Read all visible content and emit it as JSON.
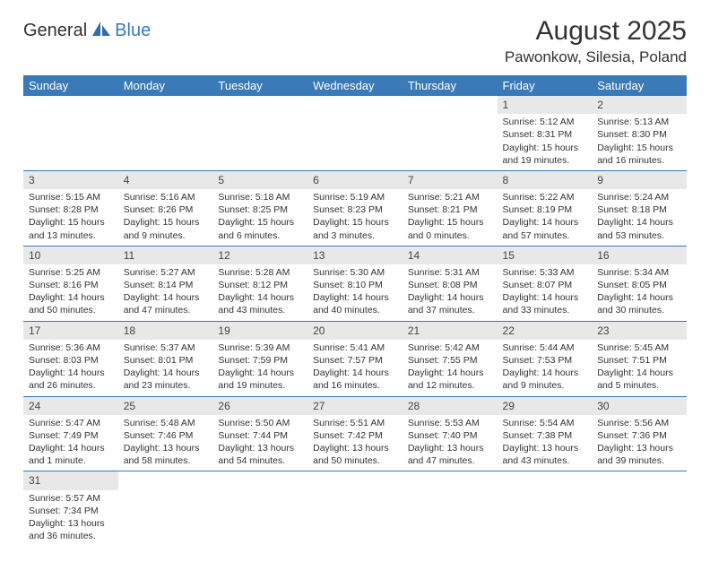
{
  "logo": {
    "part1": "General",
    "part2": "Blue"
  },
  "title": "August 2025",
  "subtitle": "Pawonkow, Silesia, Poland",
  "colors": {
    "headerBg": "#3a7ab8",
    "headerText": "#ffffff",
    "dayNumBg": "#e8e8e8",
    "rowBorder": "#3a7ab8",
    "textColor": "#333333",
    "pageBg": "#ffffff"
  },
  "fonts": {
    "title_size": 30,
    "subtitle_size": 17,
    "weekday_size": 13,
    "daynum_size": 12,
    "body_size": 10.5
  },
  "weekdays": [
    "Sunday",
    "Monday",
    "Tuesday",
    "Wednesday",
    "Thursday",
    "Friday",
    "Saturday"
  ],
  "weeks": [
    [
      null,
      null,
      null,
      null,
      null,
      {
        "n": "1",
        "sr": "Sunrise: 5:12 AM",
        "ss": "Sunset: 8:31 PM",
        "dl1": "Daylight: 15 hours",
        "dl2": "and 19 minutes."
      },
      {
        "n": "2",
        "sr": "Sunrise: 5:13 AM",
        "ss": "Sunset: 8:30 PM",
        "dl1": "Daylight: 15 hours",
        "dl2": "and 16 minutes."
      }
    ],
    [
      {
        "n": "3",
        "sr": "Sunrise: 5:15 AM",
        "ss": "Sunset: 8:28 PM",
        "dl1": "Daylight: 15 hours",
        "dl2": "and 13 minutes."
      },
      {
        "n": "4",
        "sr": "Sunrise: 5:16 AM",
        "ss": "Sunset: 8:26 PM",
        "dl1": "Daylight: 15 hours",
        "dl2": "and 9 minutes."
      },
      {
        "n": "5",
        "sr": "Sunrise: 5:18 AM",
        "ss": "Sunset: 8:25 PM",
        "dl1": "Daylight: 15 hours",
        "dl2": "and 6 minutes."
      },
      {
        "n": "6",
        "sr": "Sunrise: 5:19 AM",
        "ss": "Sunset: 8:23 PM",
        "dl1": "Daylight: 15 hours",
        "dl2": "and 3 minutes."
      },
      {
        "n": "7",
        "sr": "Sunrise: 5:21 AM",
        "ss": "Sunset: 8:21 PM",
        "dl1": "Daylight: 15 hours",
        "dl2": "and 0 minutes."
      },
      {
        "n": "8",
        "sr": "Sunrise: 5:22 AM",
        "ss": "Sunset: 8:19 PM",
        "dl1": "Daylight: 14 hours",
        "dl2": "and 57 minutes."
      },
      {
        "n": "9",
        "sr": "Sunrise: 5:24 AM",
        "ss": "Sunset: 8:18 PM",
        "dl1": "Daylight: 14 hours",
        "dl2": "and 53 minutes."
      }
    ],
    [
      {
        "n": "10",
        "sr": "Sunrise: 5:25 AM",
        "ss": "Sunset: 8:16 PM",
        "dl1": "Daylight: 14 hours",
        "dl2": "and 50 minutes."
      },
      {
        "n": "11",
        "sr": "Sunrise: 5:27 AM",
        "ss": "Sunset: 8:14 PM",
        "dl1": "Daylight: 14 hours",
        "dl2": "and 47 minutes."
      },
      {
        "n": "12",
        "sr": "Sunrise: 5:28 AM",
        "ss": "Sunset: 8:12 PM",
        "dl1": "Daylight: 14 hours",
        "dl2": "and 43 minutes."
      },
      {
        "n": "13",
        "sr": "Sunrise: 5:30 AM",
        "ss": "Sunset: 8:10 PM",
        "dl1": "Daylight: 14 hours",
        "dl2": "and 40 minutes."
      },
      {
        "n": "14",
        "sr": "Sunrise: 5:31 AM",
        "ss": "Sunset: 8:08 PM",
        "dl1": "Daylight: 14 hours",
        "dl2": "and 37 minutes."
      },
      {
        "n": "15",
        "sr": "Sunrise: 5:33 AM",
        "ss": "Sunset: 8:07 PM",
        "dl1": "Daylight: 14 hours",
        "dl2": "and 33 minutes."
      },
      {
        "n": "16",
        "sr": "Sunrise: 5:34 AM",
        "ss": "Sunset: 8:05 PM",
        "dl1": "Daylight: 14 hours",
        "dl2": "and 30 minutes."
      }
    ],
    [
      {
        "n": "17",
        "sr": "Sunrise: 5:36 AM",
        "ss": "Sunset: 8:03 PM",
        "dl1": "Daylight: 14 hours",
        "dl2": "and 26 minutes."
      },
      {
        "n": "18",
        "sr": "Sunrise: 5:37 AM",
        "ss": "Sunset: 8:01 PM",
        "dl1": "Daylight: 14 hours",
        "dl2": "and 23 minutes."
      },
      {
        "n": "19",
        "sr": "Sunrise: 5:39 AM",
        "ss": "Sunset: 7:59 PM",
        "dl1": "Daylight: 14 hours",
        "dl2": "and 19 minutes."
      },
      {
        "n": "20",
        "sr": "Sunrise: 5:41 AM",
        "ss": "Sunset: 7:57 PM",
        "dl1": "Daylight: 14 hours",
        "dl2": "and 16 minutes."
      },
      {
        "n": "21",
        "sr": "Sunrise: 5:42 AM",
        "ss": "Sunset: 7:55 PM",
        "dl1": "Daylight: 14 hours",
        "dl2": "and 12 minutes."
      },
      {
        "n": "22",
        "sr": "Sunrise: 5:44 AM",
        "ss": "Sunset: 7:53 PM",
        "dl1": "Daylight: 14 hours",
        "dl2": "and 9 minutes."
      },
      {
        "n": "23",
        "sr": "Sunrise: 5:45 AM",
        "ss": "Sunset: 7:51 PM",
        "dl1": "Daylight: 14 hours",
        "dl2": "and 5 minutes."
      }
    ],
    [
      {
        "n": "24",
        "sr": "Sunrise: 5:47 AM",
        "ss": "Sunset: 7:49 PM",
        "dl1": "Daylight: 14 hours",
        "dl2": "and 1 minute."
      },
      {
        "n": "25",
        "sr": "Sunrise: 5:48 AM",
        "ss": "Sunset: 7:46 PM",
        "dl1": "Daylight: 13 hours",
        "dl2": "and 58 minutes."
      },
      {
        "n": "26",
        "sr": "Sunrise: 5:50 AM",
        "ss": "Sunset: 7:44 PM",
        "dl1": "Daylight: 13 hours",
        "dl2": "and 54 minutes."
      },
      {
        "n": "27",
        "sr": "Sunrise: 5:51 AM",
        "ss": "Sunset: 7:42 PM",
        "dl1": "Daylight: 13 hours",
        "dl2": "and 50 minutes."
      },
      {
        "n": "28",
        "sr": "Sunrise: 5:53 AM",
        "ss": "Sunset: 7:40 PM",
        "dl1": "Daylight: 13 hours",
        "dl2": "and 47 minutes."
      },
      {
        "n": "29",
        "sr": "Sunrise: 5:54 AM",
        "ss": "Sunset: 7:38 PM",
        "dl1": "Daylight: 13 hours",
        "dl2": "and 43 minutes."
      },
      {
        "n": "30",
        "sr": "Sunrise: 5:56 AM",
        "ss": "Sunset: 7:36 PM",
        "dl1": "Daylight: 13 hours",
        "dl2": "and 39 minutes."
      }
    ],
    [
      {
        "n": "31",
        "sr": "Sunrise: 5:57 AM",
        "ss": "Sunset: 7:34 PM",
        "dl1": "Daylight: 13 hours",
        "dl2": "and 36 minutes."
      },
      null,
      null,
      null,
      null,
      null,
      null
    ]
  ]
}
